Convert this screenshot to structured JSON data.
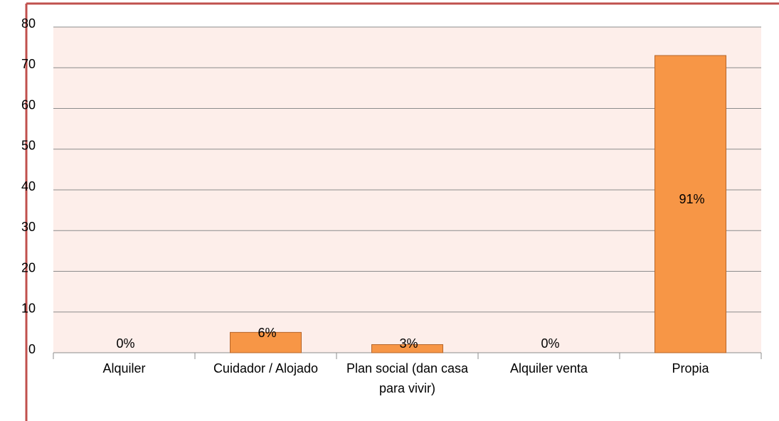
{
  "chart_data": {
    "type": "bar",
    "categories": [
      "Alquiler",
      "Cuidador / Alojado",
      "Plan social (dan casa para vivir)",
      "Alquiler venta",
      "Propia"
    ],
    "values": [
      0,
      5,
      2,
      0,
      73
    ],
    "value_labels": [
      "0%",
      "6%",
      "3%",
      "0%",
      "91%"
    ],
    "color": "#f79646",
    "ylim": [
      0,
      80
    ],
    "yticks": [
      0,
      10,
      20,
      30,
      40,
      50,
      60,
      70,
      80
    ],
    "grid": true
  }
}
